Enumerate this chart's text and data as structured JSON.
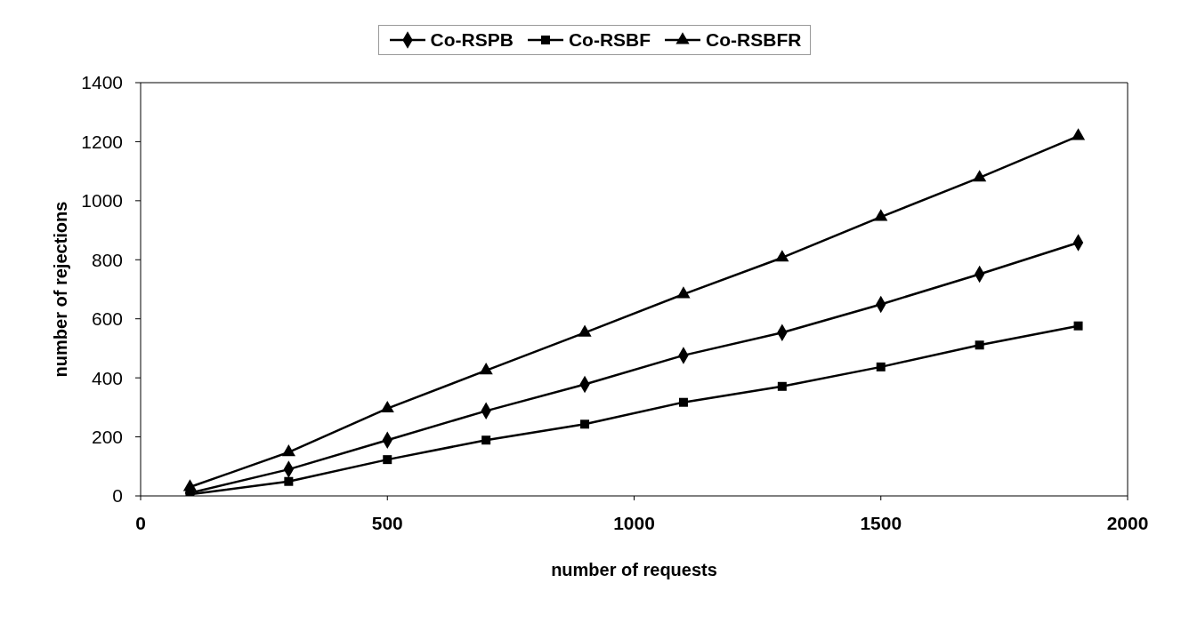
{
  "chart_data": {
    "type": "line",
    "xlabel": "number of requests",
    "ylabel": "number of rejections",
    "x": [
      100,
      300,
      500,
      700,
      900,
      1100,
      1300,
      1500,
      1700,
      1900
    ],
    "series": [
      {
        "name": "Co-RSPB",
        "color": "#000000",
        "marker": "diamond",
        "values": [
          10,
          90,
          189,
          288,
          378,
          476,
          553,
          649,
          751,
          858
        ]
      },
      {
        "name": "Co-RSBF",
        "color": "#000000",
        "marker": "square",
        "values": [
          5,
          49,
          123,
          189,
          243,
          317,
          371,
          437,
          511,
          576
        ]
      },
      {
        "name": "Co-RSBFR",
        "color": "#000000",
        "marker": "triangle",
        "values": [
          30,
          148,
          296,
          425,
          553,
          683,
          807,
          945,
          1078,
          1219
        ]
      }
    ],
    "xlim": [
      0,
      2000
    ],
    "xticks": [
      0,
      500,
      1000,
      1500,
      2000
    ],
    "ylim": [
      0,
      1400
    ],
    "yticks": [
      0,
      200,
      400,
      600,
      800,
      1000,
      1200,
      1400
    ],
    "grid": false,
    "legend": "top",
    "line_style": "solid"
  }
}
